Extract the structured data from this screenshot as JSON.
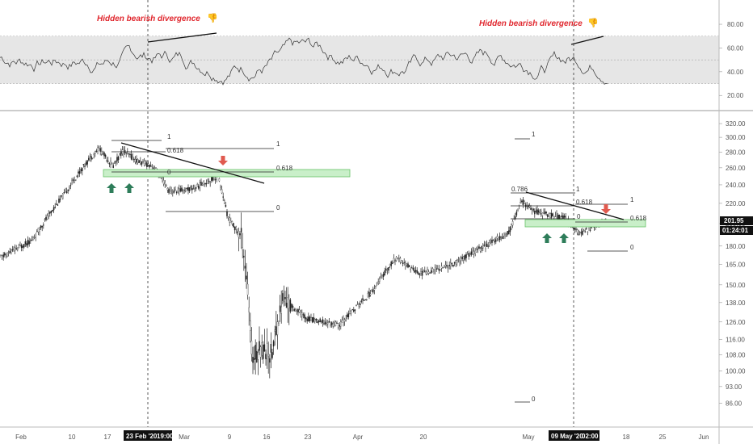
{
  "colors": {
    "candle": "#222222",
    "divergence_text": "#e0262d",
    "arrow_up": "#2e7d5a",
    "arrow_down": "#e05a4f",
    "zone_fill": "#c9efc9",
    "zone_stroke": "#67c267",
    "rsi_band": "#e6e6e6",
    "axis_label_bg": "#111111"
  },
  "annotations": {
    "divergence_1": "Hidden bearish divergence",
    "divergence_2": "Hidden bearish divergence",
    "emoji_icon": "thumbs-down-icon"
  },
  "cursor_labels": {
    "date_1": "23 Feb '20",
    "time_1": "19:00",
    "date_2": "09 May '20",
    "time_2": "02:00"
  },
  "price_labels": {
    "last_price": "201.95",
    "countdown": "01:24:01"
  },
  "fib_labels": {
    "left": [
      "1",
      "0.618",
      "0",
      "1",
      "0.618",
      "0"
    ],
    "right": [
      "1",
      "0.786",
      "0.618",
      "0",
      "1",
      "0.618",
      "0",
      "1",
      "0"
    ]
  },
  "chart_data": [
    {
      "type": "line",
      "name": "rsi-panel",
      "y_ticks": [
        "80.00",
        "60.00",
        "40.00",
        "20.00"
      ],
      "y_tick_values": [
        80,
        60,
        40,
        20
      ],
      "band": [
        30,
        70
      ],
      "ylim": [
        12,
        95
      ]
    },
    {
      "type": "candlestick",
      "name": "price-panel",
      "y_ticks": [
        "320.00",
        "300.00",
        "280.00",
        "260.00",
        "240.00",
        "220.00",
        "200.00",
        "180.00",
        "165.00",
        "150.00",
        "138.00",
        "126.00",
        "116.00",
        "108.00",
        "100.00",
        "93.00",
        "86.00"
      ],
      "y_tick_values": [
        320,
        300,
        280,
        260,
        240,
        220,
        200,
        180,
        165,
        150,
        138,
        126,
        116,
        108,
        100,
        93,
        86
      ],
      "scale": "log",
      "ylim": [
        82,
        330
      ],
      "x_ticks": [
        "Feb",
        "10",
        "17",
        "Mar",
        "9",
        "16",
        "23",
        "Apr",
        "20",
        "May",
        "18",
        "25",
        "Jun"
      ],
      "last_price": 201.95
    }
  ]
}
